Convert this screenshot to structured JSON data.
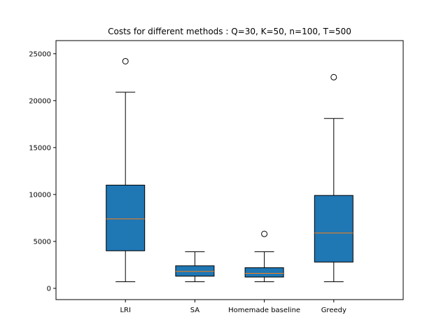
{
  "chart_data": {
    "type": "box",
    "title": "Costs for different methods : Q=30, K=50, n=100, T=500",
    "xlabel": "",
    "ylabel": "",
    "ylim": [
      -1200,
      26400
    ],
    "yticks": [
      0,
      5000,
      10000,
      15000,
      20000,
      25000
    ],
    "grid": false,
    "box_color": "#1f77b4",
    "median_color": "#ff7f0e",
    "categories": [
      "LRI",
      "SA",
      "Homemade baseline",
      "Greedy"
    ],
    "boxes": [
      {
        "label": "LRI",
        "whislo": 700,
        "q1": 4000,
        "med": 7400,
        "q3": 11000,
        "whishi": 20900,
        "fliers": [
          24200
        ]
      },
      {
        "label": "SA",
        "whislo": 700,
        "q1": 1300,
        "med": 1800,
        "q3": 2400,
        "whishi": 3900,
        "fliers": []
      },
      {
        "label": "Homemade baseline",
        "whislo": 700,
        "q1": 1200,
        "med": 1600,
        "q3": 2200,
        "whishi": 3900,
        "fliers": [
          5800
        ]
      },
      {
        "label": "Greedy",
        "whislo": 700,
        "q1": 2800,
        "med": 5900,
        "q3": 9900,
        "whishi": 18100,
        "fliers": [
          22500
        ]
      }
    ]
  }
}
